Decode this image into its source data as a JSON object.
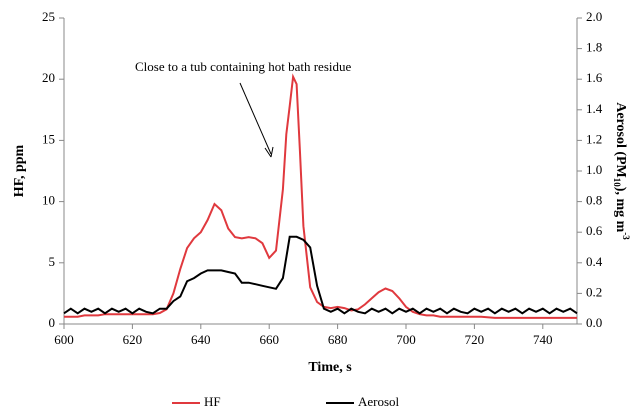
{
  "chart_data": {
    "type": "line",
    "x_label": "Time, s",
    "y_label": "HF, ppm",
    "y2_label_parts": [
      "Aerosol (PM",
      "10",
      "), mg m",
      "-3"
    ],
    "annotation": "Close to a tub containing hot bath residue",
    "xlim": [
      600,
      750
    ],
    "xticks": [
      600,
      620,
      640,
      660,
      680,
      700,
      720,
      740
    ],
    "ylim": [
      0,
      25
    ],
    "yticks": [
      0,
      5,
      10,
      15,
      20,
      25
    ],
    "y2lim": [
      0,
      2
    ],
    "y2ticks": [
      {
        "value": 0,
        "label": "0.0"
      },
      0.2,
      0.4,
      0.6,
      0.8,
      {
        "value": 1,
        "label": "1.0"
      },
      1.2,
      1.4,
      1.6,
      1.8,
      {
        "value": 2,
        "label": "2.0"
      }
    ],
    "legend": "bottom",
    "series": [
      {
        "name": "HF",
        "color": "#e0393e",
        "x": [
          600,
          602,
          604,
          606,
          608,
          610,
          612,
          614,
          616,
          618,
          620,
          622,
          624,
          626,
          628,
          630,
          632,
          634,
          636,
          638,
          640,
          642,
          644,
          646,
          648,
          650,
          652,
          654,
          656,
          658,
          660,
          662,
          664,
          665,
          666,
          667,
          668,
          669,
          670,
          672,
          674,
          676,
          678,
          680,
          682,
          684,
          686,
          688,
          690,
          692,
          694,
          696,
          698,
          700,
          702,
          704,
          706,
          708,
          710,
          714,
          718,
          722,
          726,
          730,
          734,
          738,
          742,
          746,
          750
        ],
        "values": [
          0.6,
          0.6,
          0.6,
          0.7,
          0.7,
          0.7,
          0.8,
          0.8,
          0.8,
          0.8,
          0.8,
          0.8,
          0.8,
          0.8,
          0.9,
          1.2,
          2.5,
          4.5,
          6.2,
          7.0,
          7.5,
          8.5,
          9.8,
          9.3,
          7.8,
          7.1,
          7.0,
          7.1,
          7.0,
          6.6,
          5.4,
          6.0,
          11.0,
          15.5,
          17.8,
          20.2,
          19.6,
          14.0,
          8.0,
          3.0,
          1.8,
          1.4,
          1.3,
          1.4,
          1.3,
          1.1,
          1.2,
          1.6,
          2.1,
          2.6,
          2.9,
          2.7,
          2.1,
          1.4,
          1.0,
          0.8,
          0.7,
          0.7,
          0.6,
          0.6,
          0.6,
          0.6,
          0.5,
          0.5,
          0.5,
          0.5,
          0.5,
          0.5,
          0.5
        ]
      },
      {
        "name": "Aerosol",
        "color": "#000000",
        "axis": "y2",
        "x": [
          600,
          602,
          604,
          606,
          608,
          610,
          612,
          614,
          616,
          618,
          620,
          622,
          624,
          626,
          628,
          630,
          632,
          634,
          636,
          638,
          640,
          642,
          644,
          646,
          648,
          650,
          652,
          654,
          656,
          658,
          660,
          662,
          664,
          666,
          668,
          670,
          672,
          674,
          676,
          678,
          680,
          682,
          684,
          686,
          688,
          690,
          692,
          694,
          696,
          698,
          700,
          702,
          704,
          706,
          708,
          710,
          712,
          714,
          716,
          718,
          720,
          722,
          724,
          726,
          728,
          730,
          732,
          734,
          736,
          738,
          740,
          742,
          744,
          746,
          748,
          750
        ],
        "values": [
          0.07,
          0.1,
          0.07,
          0.1,
          0.08,
          0.1,
          0.07,
          0.1,
          0.08,
          0.1,
          0.07,
          0.1,
          0.08,
          0.07,
          0.1,
          0.1,
          0.15,
          0.18,
          0.28,
          0.3,
          0.33,
          0.35,
          0.35,
          0.35,
          0.34,
          0.33,
          0.27,
          0.27,
          0.26,
          0.25,
          0.24,
          0.23,
          0.3,
          0.57,
          0.57,
          0.55,
          0.5,
          0.25,
          0.1,
          0.08,
          0.1,
          0.07,
          0.1,
          0.08,
          0.07,
          0.1,
          0.08,
          0.1,
          0.07,
          0.1,
          0.08,
          0.1,
          0.07,
          0.1,
          0.08,
          0.1,
          0.07,
          0.1,
          0.08,
          0.07,
          0.1,
          0.08,
          0.1,
          0.07,
          0.1,
          0.08,
          0.1,
          0.07,
          0.1,
          0.08,
          0.1,
          0.07,
          0.1,
          0.08,
          0.1,
          0.07
        ]
      }
    ]
  }
}
